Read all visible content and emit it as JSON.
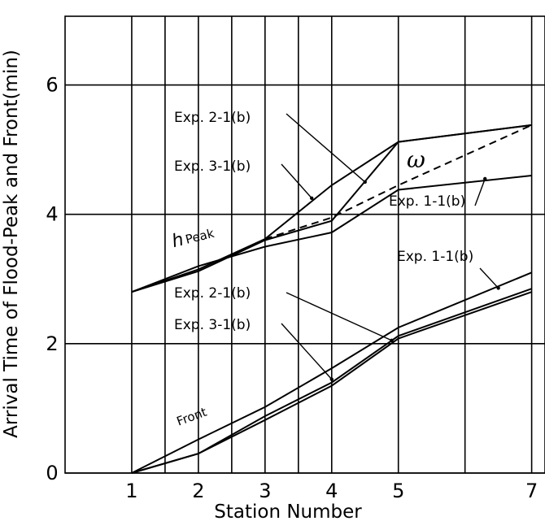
{
  "chart_data": {
    "type": "line",
    "xlabel": "Station Number",
    "ylabel": "Arrival Time of Flood-Peak and Front(min)",
    "xlim": [
      0,
      7.2
    ],
    "ylim": [
      0,
      7
    ],
    "x_ticks": [
      1,
      2,
      3,
      4,
      5,
      7
    ],
    "y_ticks": [
      0,
      2,
      4,
      6
    ],
    "grid": true,
    "series": [
      {
        "name": "Exp. 1-1(b)",
        "group": "peak",
        "x": [
          1,
          2,
          3,
          4,
          5,
          7
        ],
        "y": [
          2.8,
          3.2,
          3.5,
          3.72,
          4.38,
          4.6
        ]
      },
      {
        "name": "Exp. 2-1(b)",
        "group": "peak",
        "x": [
          1,
          2,
          3,
          4,
          5,
          7
        ],
        "y": [
          2.8,
          3.12,
          3.6,
          3.9,
          5.12,
          5.38
        ]
      },
      {
        "name": "Exp. 3-1(b)",
        "group": "peak",
        "x": [
          1,
          2,
          3,
          4,
          5,
          7
        ],
        "y": [
          2.8,
          3.15,
          3.62,
          4.45,
          5.12,
          5.38
        ]
      },
      {
        "name": "ω",
        "group": "peak",
        "dashed": true,
        "x": [
          3,
          4,
          5,
          7
        ],
        "y": [
          3.62,
          3.95,
          4.45,
          5.38
        ]
      },
      {
        "name": "Exp. 1-1(b)",
        "group": "front",
        "x": [
          1,
          2,
          3,
          4,
          5,
          7
        ],
        "y": [
          0,
          0.52,
          1.02,
          1.62,
          2.25,
          3.1
        ]
      },
      {
        "name": "Exp. 2-1(b)",
        "group": "front",
        "x": [
          1,
          2,
          3,
          4,
          5,
          7
        ],
        "y": [
          0,
          0.3,
          0.88,
          1.4,
          2.12,
          2.85
        ]
      },
      {
        "name": "Exp. 3-1(b)",
        "group": "front",
        "x": [
          1,
          2,
          3,
          4,
          5,
          7
        ],
        "y": [
          0,
          0.3,
          0.82,
          1.35,
          2.08,
          2.8
        ]
      }
    ],
    "annotations": {
      "peak_exp2": "Exp. 2-1(b)",
      "peak_exp3": "Exp. 3-1(b)",
      "omega": "ω",
      "peak_exp1": "Exp. 1-1(b)",
      "h_peak_h": "h",
      "h_peak_word": "Peak",
      "front_exp1": "Exp. 1-1(b)",
      "front_exp2": "Exp. 2-1(b)",
      "front_exp3": "Exp. 3-1(b)",
      "front": "Front"
    }
  }
}
